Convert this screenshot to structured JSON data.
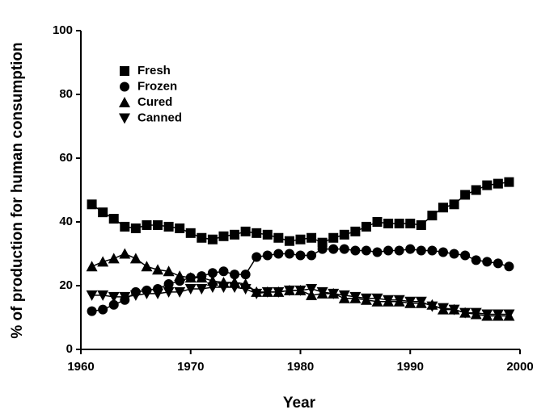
{
  "chart_data": {
    "type": "line",
    "xlabel": "Year",
    "ylabel": "% of production for human consumption",
    "x": [
      1961,
      1962,
      1963,
      1964,
      1965,
      1966,
      1967,
      1968,
      1969,
      1970,
      1971,
      1972,
      1973,
      1974,
      1975,
      1976,
      1977,
      1978,
      1979,
      1980,
      1981,
      1982,
      1983,
      1984,
      1985,
      1986,
      1987,
      1988,
      1989,
      1990,
      1991,
      1992,
      1993,
      1994,
      1995,
      1996,
      1997,
      1998,
      1999
    ],
    "xlim": [
      1960,
      2000
    ],
    "xticks": [
      1960,
      1970,
      1980,
      1990,
      2000
    ],
    "ylim": [
      0,
      100
    ],
    "yticks": [
      0,
      20,
      40,
      60,
      80,
      100
    ],
    "legend": "upper-left",
    "series": [
      {
        "name": "Fresh",
        "color": "#000000",
        "marker": "square",
        "values": [
          45.5,
          43,
          41,
          38.5,
          38,
          39,
          39,
          38.5,
          38,
          36.5,
          35,
          34.5,
          35.5,
          36,
          37,
          36.5,
          36,
          35,
          34,
          34.5,
          35,
          33.5,
          35,
          36,
          37,
          38.5,
          40,
          39.5,
          39.5,
          39.5,
          39,
          42,
          44.5,
          45.5,
          48.5,
          50,
          51.5,
          52,
          52.5
        ]
      },
      {
        "name": "Frozen",
        "color": "#000000",
        "marker": "circle",
        "values": [
          12,
          12.5,
          14,
          15.5,
          18,
          18.5,
          19,
          20.5,
          21.5,
          22.5,
          23,
          24,
          24.5,
          23.5,
          23.5,
          29,
          29.5,
          30,
          30,
          29.5,
          29.5,
          31.5,
          31.5,
          31.5,
          31,
          31,
          30.5,
          31,
          31,
          31.5,
          31,
          31,
          30.5,
          30,
          29.5,
          28,
          27.5,
          27,
          26
        ]
      },
      {
        "name": "Cured",
        "color": "#000000",
        "marker": "triangle",
        "values": [
          26,
          27.5,
          28.5,
          30,
          28.5,
          26,
          25,
          24.5,
          23,
          22.5,
          22.5,
          21.5,
          21,
          21,
          20.5,
          18,
          18,
          18,
          18.5,
          18.5,
          17,
          17.5,
          17.5,
          16,
          16,
          15.5,
          15,
          15,
          15,
          14.5,
          14.5,
          14,
          12.5,
          12.5,
          11.5,
          11,
          10.5,
          10.5,
          10.5
        ]
      },
      {
        "name": "Canned",
        "color": "#000000",
        "marker": "triangle-down",
        "values": [
          17,
          17,
          16.5,
          16.5,
          17,
          17.5,
          17.5,
          18,
          18,
          19,
          19,
          19.5,
          19.5,
          19.5,
          19,
          17.5,
          18,
          18,
          18.5,
          18.5,
          19,
          18,
          17.5,
          17,
          16.5,
          16,
          16,
          15.5,
          15.5,
          15,
          15,
          13.5,
          13,
          12.5,
          11.5,
          11.5,
          11,
          11,
          11
        ]
      }
    ]
  }
}
